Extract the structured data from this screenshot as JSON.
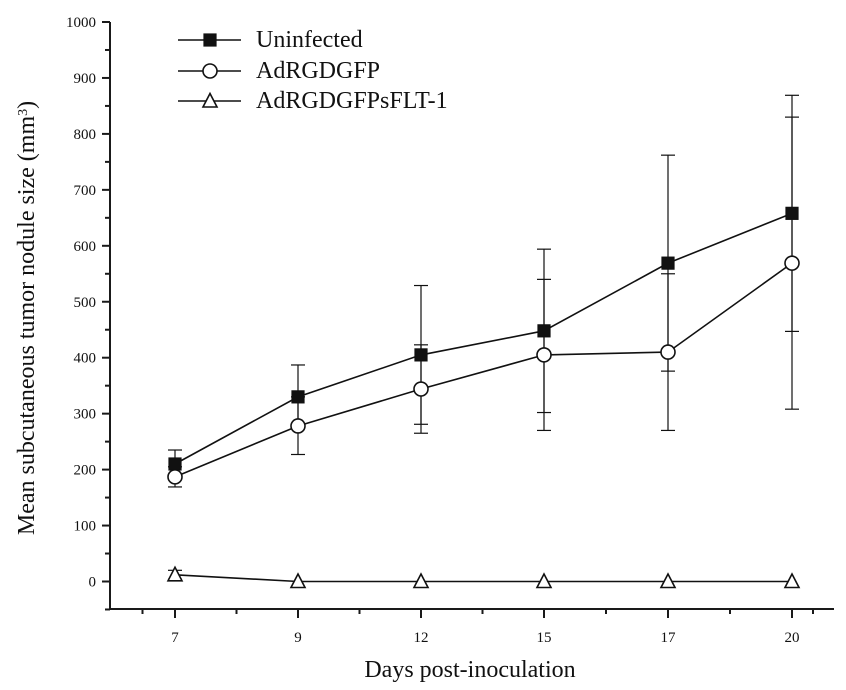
{
  "chart_data": {
    "type": "line",
    "title": "",
    "xlabel": "Days post-inoculation",
    "ylabel": "Mean subcutaneous tumor nodule size (mm3)",
    "ylabel_parts": {
      "prefix": "Mean subcutaneous tumor nodule size (mm",
      "superscript": "3",
      "suffix": ")"
    },
    "x": [
      7,
      9,
      12,
      15,
      17,
      20
    ],
    "x_ticks": [
      "7",
      "9",
      "12",
      "15",
      "17",
      "20"
    ],
    "ylim": [
      -60,
      1000
    ],
    "y_ticks": [
      0,
      100,
      200,
      300,
      400,
      500,
      600,
      700,
      800,
      900,
      1000
    ],
    "y_tick_labels": [
      "0",
      "100",
      "200",
      "300",
      "400",
      "500",
      "600",
      "700",
      "800",
      "900",
      "1000"
    ],
    "grid": false,
    "legend_position": "top-left",
    "series": [
      {
        "name": "Uninfected",
        "marker": "square-filled",
        "values": [
          210,
          330,
          405,
          448,
          569,
          658
        ],
        "error_upper": [
          235,
          387,
          529,
          594,
          762,
          869
        ],
        "error_lower": [
          185,
          273,
          281,
          302,
          376,
          447
        ]
      },
      {
        "name": "AdRGDGFP",
        "marker": "circle-open",
        "values": [
          187,
          278,
          344,
          405,
          410,
          569
        ],
        "error_upper": [
          205,
          330,
          423,
          540,
          550,
          830
        ],
        "error_lower": [
          169,
          227,
          265,
          270,
          270,
          308
        ]
      },
      {
        "name": "AdRGDGFPsFLT-1",
        "marker": "triangle-open",
        "values": [
          12,
          0,
          0,
          0,
          0,
          0
        ],
        "error_upper": [
          20,
          0,
          0,
          0,
          0,
          0
        ],
        "error_lower": [
          4,
          0,
          0,
          0,
          0,
          0
        ]
      }
    ],
    "colors": {
      "foreground": "#111111",
      "background": "#ffffff"
    }
  }
}
